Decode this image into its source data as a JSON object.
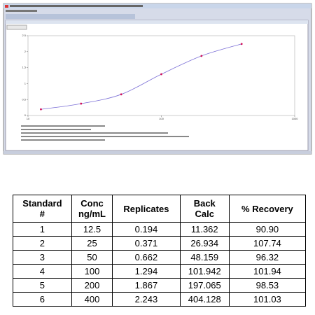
{
  "screenshot": {
    "chart_data": {
      "type": "line",
      "log_x": true,
      "x": [
        12.5,
        25,
        50,
        100,
        200,
        400
      ],
      "series": [
        {
          "color": "#7b6fd6",
          "marker_color": "#d0105a",
          "values": [
            0.194,
            0.371,
            0.662,
            1.294,
            1.867,
            2.243
          ]
        }
      ],
      "xlim": [
        10,
        1000
      ],
      "xticks": [
        10,
        100,
        1000
      ],
      "ylim": [
        0,
        2.5
      ],
      "yticks": [
        0,
        0.5,
        1,
        1.5,
        2,
        2.5
      ]
    }
  },
  "table": {
    "headers": [
      "Standard\n#",
      "Conc\nng/mL",
      "Replicates",
      "Back\nCalc",
      "% Recovery"
    ],
    "rows": [
      [
        "1",
        "12.5",
        "0.194",
        "11.362",
        "90.90"
      ],
      [
        "2",
        "25",
        "0.371",
        "26.934",
        "107.74"
      ],
      [
        "3",
        "50",
        "0.662",
        "48.159",
        "96.32"
      ],
      [
        "4",
        "100",
        "1.294",
        "101.942",
        "101.94"
      ],
      [
        "5",
        "200",
        "1.867",
        "197.065",
        "98.53"
      ],
      [
        "6",
        "400",
        "2.243",
        "404.128",
        "101.03"
      ]
    ]
  }
}
